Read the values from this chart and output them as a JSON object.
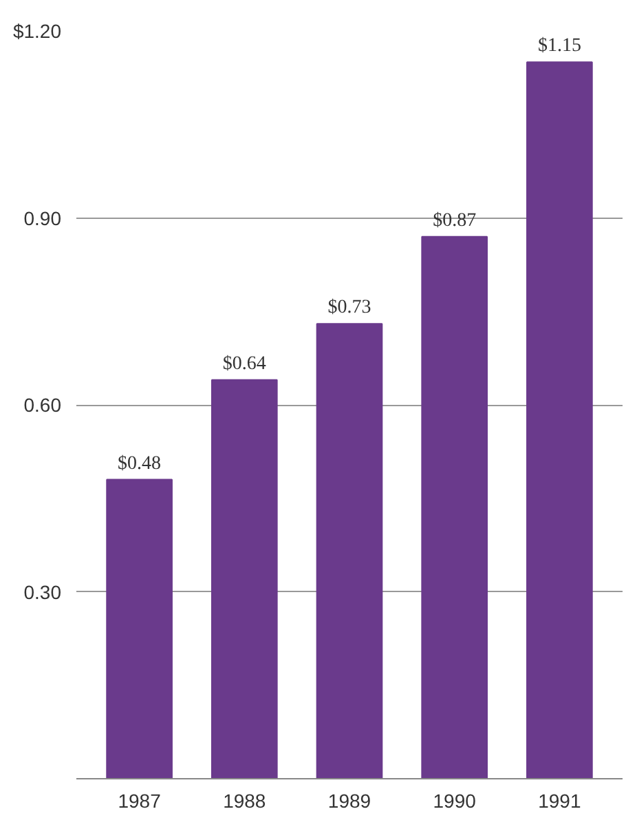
{
  "chart_data": {
    "type": "bar",
    "categories": [
      "1987",
      "1988",
      "1989",
      "1990",
      "1991"
    ],
    "values": [
      0.48,
      0.64,
      0.73,
      0.87,
      1.15
    ],
    "color": "#6a3a8c",
    "value_labels": [
      "$0.48",
      "$0.64",
      "$0.73",
      "$0.87",
      "$1.15"
    ],
    "ylim": [
      0,
      1.2
    ],
    "yticks": [
      {
        "value": 0,
        "label": null
      },
      {
        "value": 0.3,
        "label": "0.30"
      },
      {
        "value": 0.6,
        "label": "0.60"
      },
      {
        "value": 0.9,
        "label": "0.90"
      },
      {
        "value": 1.2,
        "label": "$1.20"
      }
    ],
    "grid": "y"
  }
}
